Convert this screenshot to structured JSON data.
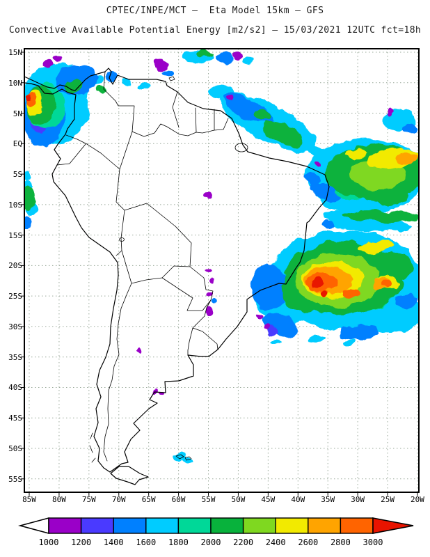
{
  "header": {
    "line1": "CPTEC/INPE/MCT –  Eta Model 15km – GFS",
    "line2": "Convective Available Potential Energy [m2/s2] – 15/03/2021 12UTC fct=18h"
  },
  "map": {
    "lat_labels": [
      "15N",
      "10N",
      "5N",
      "EQ",
      "5S",
      "10S",
      "15S",
      "20S",
      "25S",
      "30S",
      "35S",
      "40S",
      "45S",
      "50S",
      "55S"
    ],
    "lon_labels": [
      "85W",
      "80W",
      "75W",
      "70W",
      "65W",
      "60W",
      "55W",
      "50W",
      "45W",
      "40W",
      "35W",
      "30W",
      "25W",
      "20W"
    ],
    "grid_color": "#9aa99a"
  },
  "colorbar": {
    "tick_labels": [
      "1000",
      "1200",
      "1400",
      "1600",
      "1800",
      "2000",
      "2200",
      "2400",
      "2600",
      "2800",
      "3000"
    ],
    "under_color": "#ffffff",
    "over_color": "#e81400",
    "colors": [
      "#9a00c8",
      "#4a3aff",
      "#0080ff",
      "#00ccff",
      "#00d898",
      "#08b23c",
      "#7fd820",
      "#f2ea00",
      "#ffa400",
      "#ff6400"
    ]
  }
}
